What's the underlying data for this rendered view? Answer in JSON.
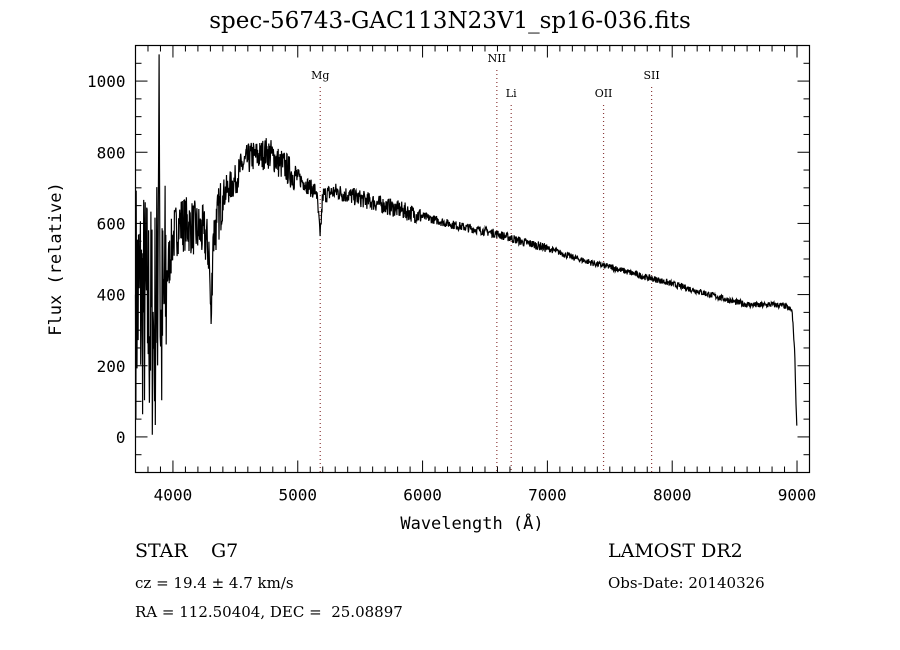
{
  "chart_data": {
    "type": "line",
    "title": "spec-56743-GAC113N23V1_sp16-036.fits",
    "xlabel": "Wavelength (Å)",
    "ylabel": "Flux (relative)",
    "xlim": [
      3700,
      9100
    ],
    "ylim": [
      -100,
      1100
    ],
    "xticks": [
      4000,
      5000,
      6000,
      7000,
      8000,
      9000
    ],
    "yticks": [
      0,
      200,
      400,
      600,
      800,
      1000
    ],
    "xtick_labels": [
      "4000",
      "5000",
      "6000",
      "7000",
      "8000",
      "9000"
    ],
    "ytick_labels": [
      "0",
      "200",
      "400",
      "600",
      "800",
      "1000"
    ],
    "grid": false,
    "series": [
      {
        "name": "spectrum",
        "x": [
          3700,
          3750,
          3800,
          3850,
          3880,
          3888,
          3900,
          3950,
          4000,
          4050,
          4100,
          4150,
          4200,
          4250,
          4290,
          4305,
          4320,
          4350,
          4400,
          4450,
          4500,
          4550,
          4600,
          4650,
          4700,
          4750,
          4800,
          4850,
          4900,
          4950,
          5000,
          5050,
          5100,
          5150,
          5180,
          5200,
          5300,
          5400,
          5500,
          5600,
          5700,
          5800,
          5900,
          6000,
          6100,
          6200,
          6300,
          6400,
          6500,
          6600,
          6700,
          6800,
          6900,
          7000,
          7100,
          7200,
          7300,
          7400,
          7500,
          7600,
          7700,
          7800,
          7900,
          8000,
          8100,
          8200,
          8300,
          8400,
          8500,
          8600,
          8700,
          8800,
          8900,
          8960,
          8980,
          9000
        ],
        "y": [
          400,
          380,
          350,
          300,
          450,
          1150,
          250,
          450,
          560,
          600,
          600,
          590,
          580,
          570,
          520,
          300,
          560,
          600,
          680,
          700,
          720,
          760,
          780,
          790,
          790,
          800,
          790,
          770,
          760,
          740,
          730,
          715,
          700,
          690,
          560,
          680,
          690,
          680,
          670,
          660,
          650,
          640,
          630,
          620,
          610,
          600,
          592,
          585,
          578,
          570,
          560,
          548,
          540,
          530,
          518,
          505,
          495,
          485,
          478,
          468,
          458,
          448,
          440,
          430,
          420,
          410,
          400,
          390,
          380,
          372,
          370,
          372,
          368,
          355,
          250,
          0
        ]
      }
    ],
    "line_markers": [
      {
        "label": "Mg",
        "x": 5180
      },
      {
        "label": "NII",
        "x": 6595
      },
      {
        "label": "Li",
        "x": 6710
      },
      {
        "label": "OII",
        "x": 7450
      },
      {
        "label": "SII",
        "x": 7835
      }
    ]
  },
  "info": {
    "class": "STAR",
    "subclass": "G7",
    "survey": "LAMOST DR2",
    "cz": "cz = 19.4 ± 4.7 km/s",
    "obs_date": "Obs-Date: 20140326",
    "coords": "RA = 112.50404, DEC =  25.08897"
  },
  "colors": {
    "axis": "#000000",
    "spectrum": "#000000",
    "marker": "#8b3a3a"
  }
}
